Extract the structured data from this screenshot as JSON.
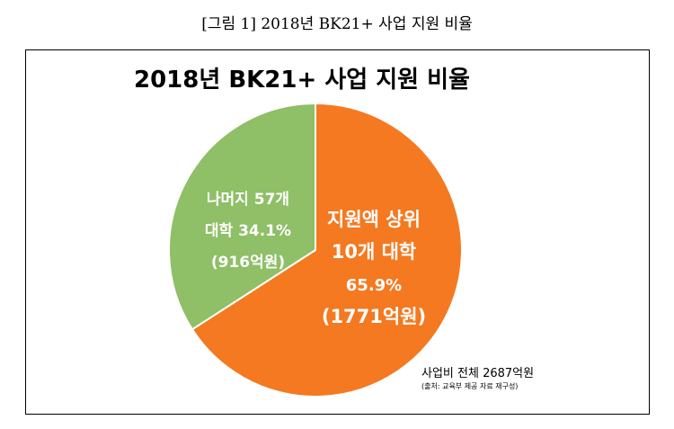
{
  "figure_caption": "[그림 1] 2018년 BK21+ 사업 지원 비율",
  "chart_data": {
    "type": "pie",
    "title": "2018년 BK21+ 사업 지원 비율",
    "categories": [
      "지원액 상위 10개 대학",
      "나머지 57개 대학"
    ],
    "values": [
      65.9,
      34.1
    ],
    "amounts_억원": [
      1771,
      916
    ],
    "colors": [
      "#f47920",
      "#8fbf67"
    ],
    "slices": [
      {
        "lines": [
          "지원액 상위",
          "10개 대학",
          "65.9%",
          "(1771억원)"
        ]
      },
      {
        "lines": [
          "나머지 57개",
          "대학 34.1%",
          "(916억원)"
        ]
      }
    ]
  },
  "footnote": {
    "total": "사업비 전체 2687억원",
    "source": "(출처: 교육부 제공 자료 재구성)"
  }
}
